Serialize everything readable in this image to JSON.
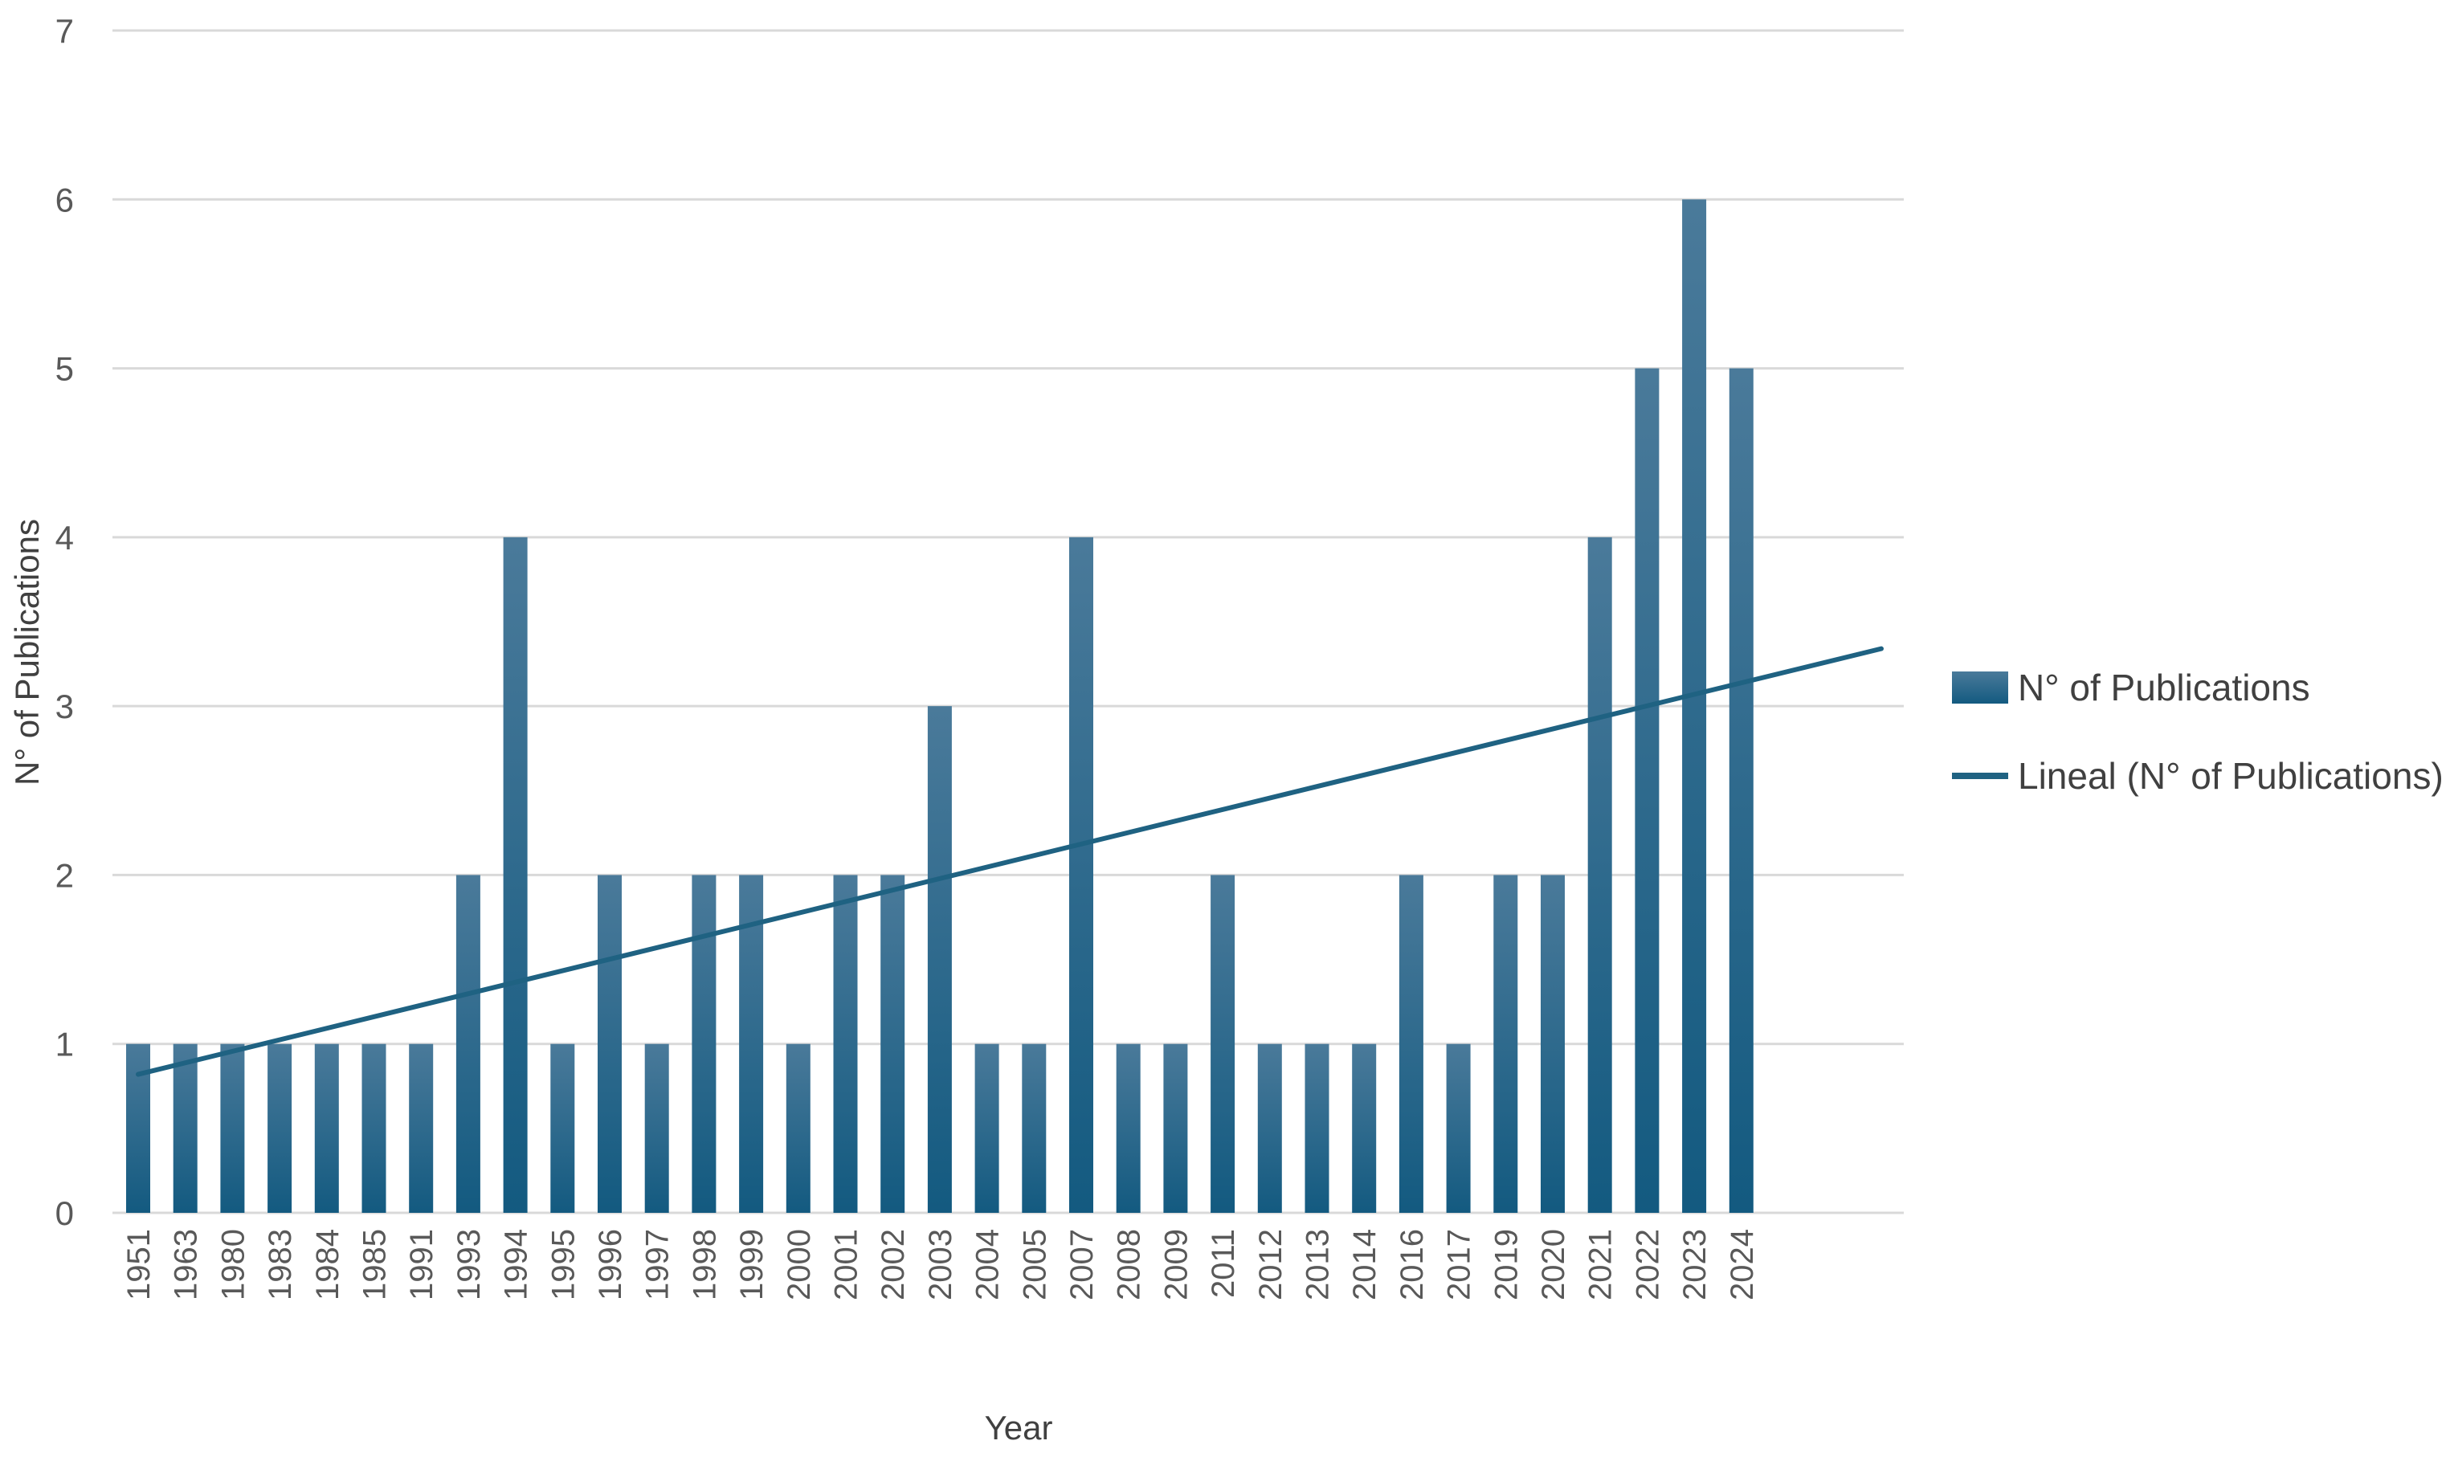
{
  "chart_data": {
    "type": "bar",
    "categories": [
      "1951",
      "1963",
      "1980",
      "1983",
      "1984",
      "1985",
      "1991",
      "1993",
      "1994",
      "1995",
      "1996",
      "1997",
      "1998",
      "1999",
      "2000",
      "2001",
      "2002",
      "2003",
      "2004",
      "2005",
      "2007",
      "2008",
      "2009",
      "2011",
      "2012",
      "2013",
      "2014",
      "2016",
      "2017",
      "2019",
      "2020",
      "2021",
      "2022",
      "2023",
      "2024"
    ],
    "series": [
      {
        "name": "N° of Publications",
        "values": [
          1,
          1,
          1,
          1,
          1,
          1,
          1,
          2,
          4,
          1,
          2,
          1,
          2,
          2,
          1,
          2,
          2,
          3,
          1,
          1,
          4,
          1,
          1,
          2,
          1,
          1,
          1,
          2,
          1,
          2,
          2,
          4,
          5,
          6,
          5
        ],
        "color": "#1f5f85"
      }
    ],
    "trendline": {
      "name": "Lineal (N° of Publications)",
      "type": "linear",
      "start_value": 0.82,
      "end_value": 3.34,
      "color": "#1f6282"
    },
    "xlabel": "Year",
    "ylabel": "N° of Publications",
    "ylim": [
      0,
      7
    ],
    "yticks": [
      "0",
      "1",
      "2",
      "3",
      "4",
      "5",
      "6",
      "7"
    ],
    "grid": true,
    "legend_position": "right"
  }
}
